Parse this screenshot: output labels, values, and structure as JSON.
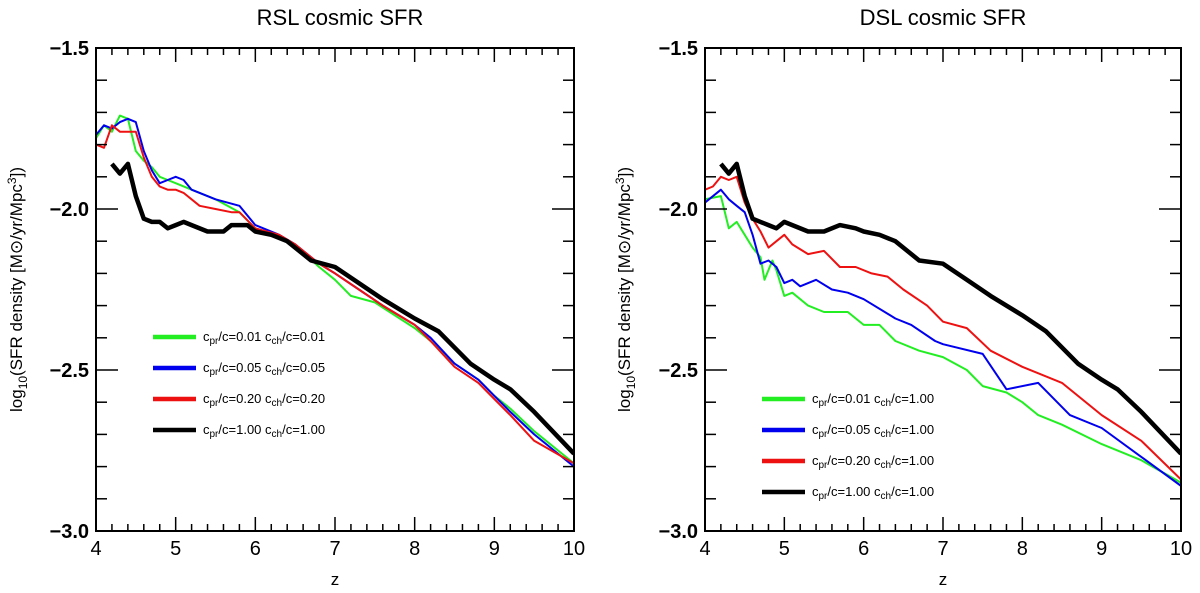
{
  "chart_data": [
    {
      "type": "line",
      "title": "RSL cosmic SFR",
      "xlabel": "z",
      "ylabel_prefix": "log",
      "ylabel_sub": "10",
      "ylabel_main": "(SFR density [M",
      "ylabel_sun": "⊙",
      "ylabel_unit": "/yr/Mpc",
      "ylabel_sup": "3",
      "ylabel_end": "])",
      "xlim": [
        4,
        10
      ],
      "ylim": [
        -3.0,
        -1.5
      ],
      "xticks": [
        "4",
        "5",
        "6",
        "7",
        "8",
        "9",
        "10"
      ],
      "yticks": [
        "−3.0",
        "−2.5",
        "−2.0",
        "−1.5"
      ],
      "legend_position": "lower-left",
      "series": [
        {
          "name": "cpr/c=0.01   cch/c=0.01",
          "legend": {
            "a": "c",
            "a_sub": "pr",
            "b": "/c=0.01   c",
            "b_sub": "ch",
            "c": "/c=0.01"
          },
          "color": "#22ee22",
          "width": 2,
          "points": [
            [
              4.0,
              -1.78
            ],
            [
              4.1,
              -1.74
            ],
            [
              4.2,
              -1.76
            ],
            [
              4.3,
              -1.71
            ],
            [
              4.4,
              -1.72
            ],
            [
              4.5,
              -1.82
            ],
            [
              4.6,
              -1.85
            ],
            [
              4.7,
              -1.87
            ],
            [
              4.8,
              -1.9
            ],
            [
              4.9,
              -1.91
            ],
            [
              5.0,
              -1.92
            ],
            [
              5.2,
              -1.94
            ],
            [
              5.5,
              -1.97
            ],
            [
              5.8,
              -2.01
            ],
            [
              6.0,
              -2.06
            ],
            [
              6.3,
              -2.09
            ],
            [
              6.5,
              -2.11
            ],
            [
              6.8,
              -2.18
            ],
            [
              7.0,
              -2.22
            ],
            [
              7.2,
              -2.27
            ],
            [
              7.5,
              -2.29
            ],
            [
              8.0,
              -2.37
            ],
            [
              8.2,
              -2.41
            ],
            [
              8.5,
              -2.48
            ],
            [
              8.8,
              -2.53
            ],
            [
              9.0,
              -2.58
            ],
            [
              9.2,
              -2.62
            ],
            [
              9.5,
              -2.69
            ],
            [
              10.0,
              -2.79
            ]
          ]
        },
        {
          "name": "cpr/c=0.05   cch/c=0.05",
          "legend": {
            "a": "c",
            "a_sub": "pr",
            "b": "/c=0.05   c",
            "b_sub": "ch",
            "c": "/c=0.05"
          },
          "color": "#0000ee",
          "width": 2,
          "points": [
            [
              4.0,
              -1.77
            ],
            [
              4.1,
              -1.74
            ],
            [
              4.2,
              -1.75
            ],
            [
              4.3,
              -1.73
            ],
            [
              4.4,
              -1.72
            ],
            [
              4.5,
              -1.73
            ],
            [
              4.6,
              -1.82
            ],
            [
              4.7,
              -1.88
            ],
            [
              4.8,
              -1.92
            ],
            [
              4.9,
              -1.91
            ],
            [
              5.0,
              -1.9
            ],
            [
              5.1,
              -1.91
            ],
            [
              5.2,
              -1.94
            ],
            [
              5.5,
              -1.97
            ],
            [
              5.8,
              -1.99
            ],
            [
              6.0,
              -2.05
            ],
            [
              6.3,
              -2.08
            ],
            [
              6.5,
              -2.11
            ],
            [
              6.8,
              -2.17
            ],
            [
              7.0,
              -2.2
            ],
            [
              7.3,
              -2.25
            ],
            [
              7.6,
              -2.3
            ],
            [
              8.0,
              -2.36
            ],
            [
              8.2,
              -2.4
            ],
            [
              8.5,
              -2.48
            ],
            [
              8.8,
              -2.53
            ],
            [
              9.0,
              -2.58
            ],
            [
              9.2,
              -2.63
            ],
            [
              9.5,
              -2.7
            ],
            [
              10.0,
              -2.8
            ]
          ]
        },
        {
          "name": "cpr/c=0.20   cch/c=0.20",
          "legend": {
            "a": "c",
            "a_sub": "pr",
            "b": "/c=0.20   c",
            "b_sub": "ch",
            "c": "/c=0.20"
          },
          "color": "#ee1111",
          "width": 2,
          "points": [
            [
              4.0,
              -1.8
            ],
            [
              4.1,
              -1.81
            ],
            [
              4.2,
              -1.74
            ],
            [
              4.3,
              -1.76
            ],
            [
              4.5,
              -1.76
            ],
            [
              4.6,
              -1.84
            ],
            [
              4.7,
              -1.9
            ],
            [
              4.8,
              -1.93
            ],
            [
              4.9,
              -1.94
            ],
            [
              5.0,
              -1.94
            ],
            [
              5.1,
              -1.95
            ],
            [
              5.3,
              -1.99
            ],
            [
              5.5,
              -2.0
            ],
            [
              5.7,
              -2.01
            ],
            [
              5.8,
              -2.01
            ],
            [
              6.0,
              -2.06
            ],
            [
              6.3,
              -2.08
            ],
            [
              6.5,
              -2.11
            ],
            [
              6.8,
              -2.17
            ],
            [
              7.0,
              -2.2
            ],
            [
              7.3,
              -2.25
            ],
            [
              7.6,
              -2.3
            ],
            [
              8.0,
              -2.36
            ],
            [
              8.2,
              -2.41
            ],
            [
              8.5,
              -2.49
            ],
            [
              8.8,
              -2.54
            ],
            [
              9.0,
              -2.59
            ],
            [
              9.2,
              -2.64
            ],
            [
              9.5,
              -2.72
            ],
            [
              10.0,
              -2.79
            ]
          ]
        },
        {
          "name": "cpr/c=1.00   cch/c=1.00",
          "legend": {
            "a": "c",
            "a_sub": "pr",
            "b": "/c=1.00   c",
            "b_sub": "ch",
            "c": "/c=1.00"
          },
          "color": "#000000",
          "width": 4.5,
          "points": [
            [
              4.2,
              -1.86
            ],
            [
              4.3,
              -1.89
            ],
            [
              4.4,
              -1.86
            ],
            [
              4.5,
              -1.96
            ],
            [
              4.6,
              -2.03
            ],
            [
              4.7,
              -2.04
            ],
            [
              4.8,
              -2.04
            ],
            [
              4.9,
              -2.06
            ],
            [
              5.0,
              -2.05
            ],
            [
              5.1,
              -2.04
            ],
            [
              5.2,
              -2.05
            ],
            [
              5.4,
              -2.07
            ],
            [
              5.6,
              -2.07
            ],
            [
              5.7,
              -2.05
            ],
            [
              5.9,
              -2.05
            ],
            [
              6.0,
              -2.07
            ],
            [
              6.2,
              -2.08
            ],
            [
              6.4,
              -2.1
            ],
            [
              6.7,
              -2.16
            ],
            [
              7.0,
              -2.18
            ],
            [
              7.3,
              -2.23
            ],
            [
              7.6,
              -2.28
            ],
            [
              8.0,
              -2.34
            ],
            [
              8.3,
              -2.38
            ],
            [
              8.7,
              -2.48
            ],
            [
              9.0,
              -2.53
            ],
            [
              9.2,
              -2.56
            ],
            [
              9.5,
              -2.63
            ],
            [
              10.0,
              -2.76
            ]
          ]
        }
      ]
    },
    {
      "type": "line",
      "title": "DSL cosmic SFR",
      "xlabel": "z",
      "ylabel_prefix": "log",
      "ylabel_sub": "10",
      "ylabel_main": "(SFR density [M",
      "ylabel_sun": "⊙",
      "ylabel_unit": "/yr/Mpc",
      "ylabel_sup": "3",
      "ylabel_end": "])",
      "xlim": [
        4,
        10
      ],
      "ylim": [
        -3.0,
        -1.5
      ],
      "xticks": [
        "4",
        "5",
        "6",
        "7",
        "8",
        "9",
        "10"
      ],
      "yticks": [
        "−3.0",
        "−2.5",
        "−2.0",
        "−1.5"
      ],
      "legend_position": "lower-left",
      "series": [
        {
          "name": "cpr/c=0.01   cch/c=1.00",
          "legend": {
            "a": "c",
            "a_sub": "pr",
            "b": "/c=0.01   c",
            "b_sub": "ch",
            "c": "/c=1.00"
          },
          "color": "#22ee22",
          "width": 2,
          "points": [
            [
              4.0,
              -1.97
            ],
            [
              4.2,
              -1.96
            ],
            [
              4.3,
              -2.06
            ],
            [
              4.4,
              -2.04
            ],
            [
              4.5,
              -2.08
            ],
            [
              4.6,
              -2.12
            ],
            [
              4.7,
              -2.15
            ],
            [
              4.75,
              -2.22
            ],
            [
              4.85,
              -2.16
            ],
            [
              4.9,
              -2.19
            ],
            [
              5.0,
              -2.27
            ],
            [
              5.1,
              -2.26
            ],
            [
              5.3,
              -2.3
            ],
            [
              5.5,
              -2.32
            ],
            [
              5.8,
              -2.32
            ],
            [
              6.0,
              -2.36
            ],
            [
              6.2,
              -2.36
            ],
            [
              6.4,
              -2.41
            ],
            [
              6.7,
              -2.44
            ],
            [
              7.0,
              -2.46
            ],
            [
              7.3,
              -2.5
            ],
            [
              7.5,
              -2.55
            ],
            [
              7.8,
              -2.57
            ],
            [
              8.0,
              -2.6
            ],
            [
              8.2,
              -2.64
            ],
            [
              8.5,
              -2.67
            ],
            [
              9.0,
              -2.73
            ],
            [
              9.5,
              -2.78
            ],
            [
              10.0,
              -2.85
            ]
          ]
        },
        {
          "name": "cpr/c=0.05   cch/c=1.00",
          "legend": {
            "a": "c",
            "a_sub": "pr",
            "b": "/c=0.05   c",
            "b_sub": "ch",
            "c": "/c=1.00"
          },
          "color": "#0000ee",
          "width": 2,
          "points": [
            [
              4.0,
              -1.98
            ],
            [
              4.2,
              -1.94
            ],
            [
              4.3,
              -1.97
            ],
            [
              4.4,
              -1.99
            ],
            [
              4.5,
              -2.01
            ],
            [
              4.6,
              -2.08
            ],
            [
              4.7,
              -2.17
            ],
            [
              4.8,
              -2.16
            ],
            [
              4.9,
              -2.18
            ],
            [
              5.0,
              -2.23
            ],
            [
              5.1,
              -2.22
            ],
            [
              5.2,
              -2.24
            ],
            [
              5.4,
              -2.22
            ],
            [
              5.6,
              -2.25
            ],
            [
              5.8,
              -2.26
            ],
            [
              6.0,
              -2.28
            ],
            [
              6.4,
              -2.34
            ],
            [
              6.6,
              -2.36
            ],
            [
              6.9,
              -2.41
            ],
            [
              7.0,
              -2.42
            ],
            [
              7.5,
              -2.45
            ],
            [
              7.8,
              -2.56
            ],
            [
              8.2,
              -2.54
            ],
            [
              8.6,
              -2.64
            ],
            [
              9.0,
              -2.68
            ],
            [
              9.5,
              -2.77
            ],
            [
              10.0,
              -2.86
            ]
          ]
        },
        {
          "name": "cpr/c=0.20   cch/c=1.00",
          "legend": {
            "a": "c",
            "a_sub": "pr",
            "b": "/c=0.20   c",
            "b_sub": "ch",
            "c": "/c=1.00"
          },
          "color": "#ee1111",
          "width": 2,
          "points": [
            [
              4.0,
              -1.94
            ],
            [
              4.1,
              -1.93
            ],
            [
              4.2,
              -1.9
            ],
            [
              4.3,
              -1.91
            ],
            [
              4.4,
              -1.9
            ],
            [
              4.5,
              -1.98
            ],
            [
              4.6,
              -2.03
            ],
            [
              4.7,
              -2.07
            ],
            [
              4.8,
              -2.12
            ],
            [
              4.9,
              -2.1
            ],
            [
              5.0,
              -2.08
            ],
            [
              5.1,
              -2.11
            ],
            [
              5.3,
              -2.14
            ],
            [
              5.5,
              -2.13
            ],
            [
              5.7,
              -2.18
            ],
            [
              5.9,
              -2.18
            ],
            [
              6.1,
              -2.2
            ],
            [
              6.3,
              -2.21
            ],
            [
              6.5,
              -2.25
            ],
            [
              6.8,
              -2.3
            ],
            [
              7.0,
              -2.35
            ],
            [
              7.3,
              -2.37
            ],
            [
              7.6,
              -2.44
            ],
            [
              8.0,
              -2.49
            ],
            [
              8.5,
              -2.54
            ],
            [
              9.0,
              -2.64
            ],
            [
              9.5,
              -2.72
            ],
            [
              10.0,
              -2.84
            ]
          ]
        },
        {
          "name": "cpr/c=1.00   cch/c=1.00",
          "legend": {
            "a": "c",
            "a_sub": "pr",
            "b": "/c=1.00   c",
            "b_sub": "ch",
            "c": "/c=1.00"
          },
          "color": "#000000",
          "width": 4.5,
          "points": [
            [
              4.2,
              -1.86
            ],
            [
              4.3,
              -1.89
            ],
            [
              4.4,
              -1.86
            ],
            [
              4.5,
              -1.96
            ],
            [
              4.6,
              -2.03
            ],
            [
              4.7,
              -2.04
            ],
            [
              4.8,
              -2.05
            ],
            [
              4.9,
              -2.06
            ],
            [
              5.0,
              -2.04
            ],
            [
              5.1,
              -2.05
            ],
            [
              5.3,
              -2.07
            ],
            [
              5.5,
              -2.07
            ],
            [
              5.7,
              -2.05
            ],
            [
              5.9,
              -2.06
            ],
            [
              6.0,
              -2.07
            ],
            [
              6.2,
              -2.08
            ],
            [
              6.4,
              -2.1
            ],
            [
              6.7,
              -2.16
            ],
            [
              7.0,
              -2.17
            ],
            [
              7.3,
              -2.22
            ],
            [
              7.6,
              -2.27
            ],
            [
              8.0,
              -2.33
            ],
            [
              8.3,
              -2.38
            ],
            [
              8.7,
              -2.48
            ],
            [
              9.0,
              -2.53
            ],
            [
              9.2,
              -2.56
            ],
            [
              9.5,
              -2.63
            ],
            [
              10.0,
              -2.76
            ]
          ]
        }
      ]
    }
  ]
}
